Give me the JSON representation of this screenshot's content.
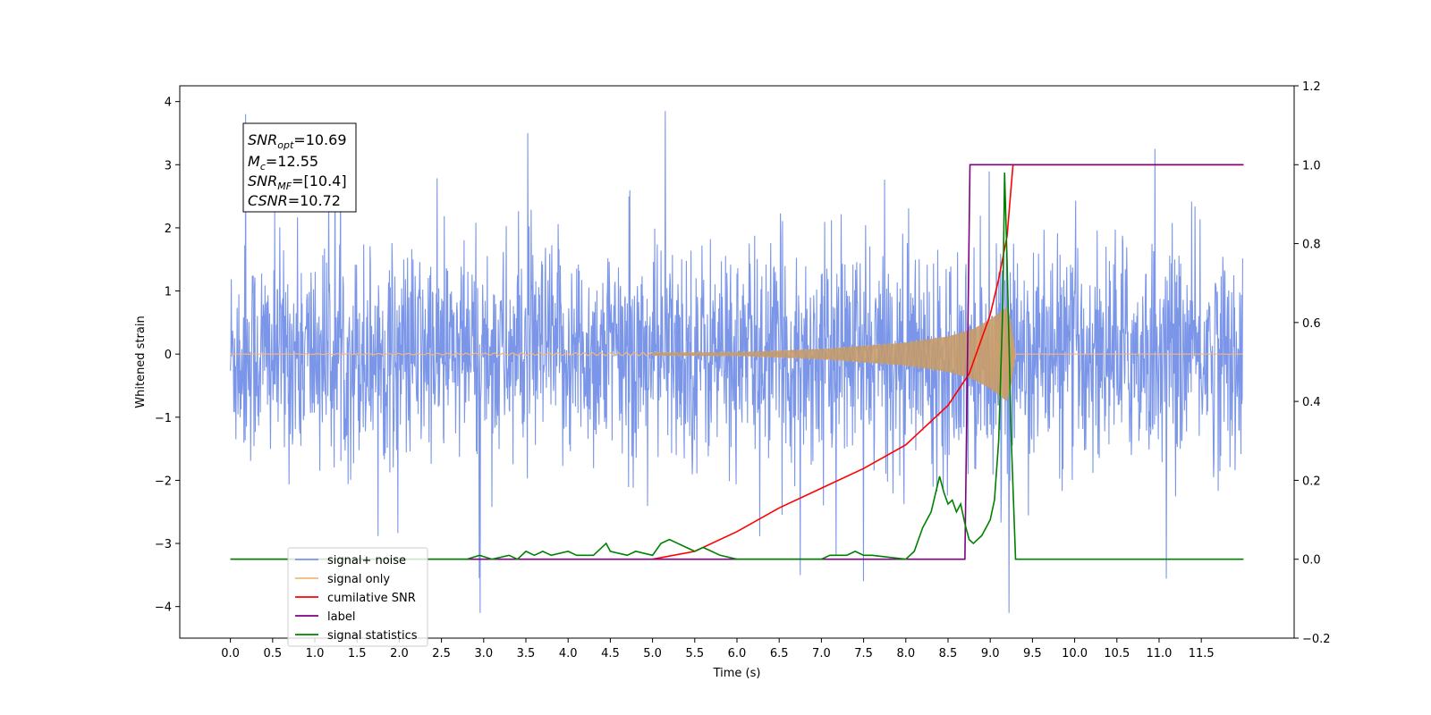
{
  "chart_data": {
    "type": "line",
    "xlabel": "Time (s)",
    "ylabel_left": "Whitened strain",
    "ylabel_right": "",
    "xlim": [
      -0.6,
      12.6
    ],
    "ylim_left": [
      -4.5,
      4.25
    ],
    "ylim_right": [
      -0.2,
      1.2
    ],
    "x_ticks": [
      "0.0",
      "0.5",
      "1.0",
      "1.5",
      "2.0",
      "2.5",
      "3.0",
      "3.5",
      "4.0",
      "4.5",
      "5.0",
      "5.5",
      "6.0",
      "6.5",
      "7.0",
      "7.5",
      "8.0",
      "8.5",
      "9.0",
      "9.5",
      "10.0",
      "10.5",
      "11.0",
      "11.5"
    ],
    "y_ticks_left": [
      "4",
      "3",
      "2",
      "1",
      "0",
      "−1",
      "−2",
      "−3",
      "−4"
    ],
    "y_ticks_right": [
      "1.2",
      "1.0",
      "0.8",
      "0.6",
      "0.4",
      "0.2",
      "0.0",
      "−0.2"
    ],
    "grid": false,
    "legend_position": "lower-left",
    "annotation": {
      "line1_base": "SNR",
      "line1_sub": "opt",
      "line1_value": "=10.69",
      "line2_base": "M",
      "line2_sub": "c",
      "line2_value": "=12.55",
      "line3_base": "SNR",
      "line3_sub": "MF",
      "line3_value": "=[10.4]",
      "line4_base": "CSNR",
      "line4_value": "=10.72"
    },
    "series": [
      {
        "name": "signal+ noise",
        "axis": "left",
        "color": "#7b96e8",
        "kind": "noise",
        "x_range": [
          0.0,
          11.99
        ],
        "typical_amplitude": 1.6,
        "max": 3.85,
        "min": -4.1
      },
      {
        "name": "signal only",
        "axis": "left",
        "color": "#f5b877",
        "kind": "chirp",
        "x_range": [
          0.0,
          11.99
        ],
        "envelope_x": [
          0.0,
          6.0,
          7.0,
          8.0,
          8.5,
          8.8,
          9.0,
          9.1,
          9.2,
          9.25,
          9.3,
          12.0
        ],
        "envelope_y": [
          0.0,
          0.03,
          0.08,
          0.18,
          0.28,
          0.4,
          0.55,
          0.65,
          0.75,
          0.5,
          0.0,
          0.0
        ]
      },
      {
        "name": "cumilative SNR",
        "axis": "right",
        "color": "#ff0000",
        "x": [
          5.0,
          5.5,
          6.0,
          6.5,
          7.0,
          7.5,
          8.0,
          8.5,
          8.75,
          9.0,
          9.1,
          9.2,
          9.25,
          9.27,
          12.0
        ],
        "y": [
          0.0,
          0.02,
          0.07,
          0.13,
          0.18,
          0.23,
          0.29,
          0.39,
          0.47,
          0.62,
          0.71,
          0.82,
          0.95,
          1.0,
          1.0
        ]
      },
      {
        "name": "label",
        "axis": "right",
        "color": "#800080",
        "x": [
          0.0,
          8.7,
          8.76,
          9.25,
          9.27,
          12.0
        ],
        "y": [
          0.0,
          0.0,
          1.0,
          1.0,
          1.0,
          1.0
        ]
      },
      {
        "name": "signal statistics",
        "axis": "right",
        "color": "#008000",
        "x": [
          0.0,
          2.8,
          2.95,
          3.1,
          3.3,
          3.4,
          3.5,
          3.6,
          3.7,
          3.8,
          4.0,
          4.1,
          4.3,
          4.4,
          4.45,
          4.5,
          4.7,
          4.8,
          5.0,
          5.1,
          5.2,
          5.3,
          5.4,
          5.5,
          5.6,
          5.7,
          5.8,
          6.0,
          7.0,
          7.1,
          7.3,
          7.4,
          7.5,
          7.6,
          8.0,
          8.1,
          8.2,
          8.3,
          8.4,
          8.45,
          8.5,
          8.55,
          8.6,
          8.65,
          8.7,
          8.75,
          8.8,
          8.9,
          9.0,
          9.05,
          9.1,
          9.15,
          9.17,
          9.2,
          9.25,
          9.3,
          9.35,
          12.0
        ],
        "y": [
          0.0,
          0.0,
          0.01,
          0.0,
          0.01,
          0.0,
          0.02,
          0.01,
          0.02,
          0.01,
          0.02,
          0.01,
          0.01,
          0.03,
          0.04,
          0.02,
          0.01,
          0.02,
          0.01,
          0.04,
          0.05,
          0.04,
          0.03,
          0.02,
          0.03,
          0.02,
          0.01,
          0.0,
          0.0,
          0.01,
          0.01,
          0.02,
          0.01,
          0.01,
          0.0,
          0.02,
          0.08,
          0.12,
          0.21,
          0.17,
          0.14,
          0.15,
          0.12,
          0.14,
          0.09,
          0.05,
          0.04,
          0.06,
          0.1,
          0.15,
          0.3,
          0.65,
          0.98,
          0.75,
          0.3,
          0.0,
          0.0,
          0.0
        ]
      }
    ]
  }
}
